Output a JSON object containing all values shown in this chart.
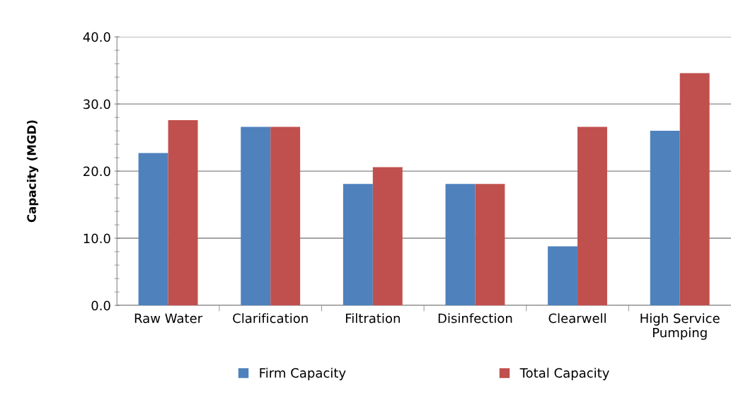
{
  "chart_data": {
    "type": "bar",
    "ylabel": "Capacity (MGD)",
    "categories": [
      "Raw Water",
      "Clarification",
      "Filtration",
      "Disinfection",
      "Clearwell",
      "High Service\nPumping"
    ],
    "series": [
      {
        "name": "Firm Capacity",
        "color": "#4f81bd",
        "values": [
          22.7,
          26.6,
          18.1,
          18.1,
          8.8,
          26.0
        ]
      },
      {
        "name": "Total Capacity",
        "color": "#c0504d",
        "values": [
          27.6,
          26.6,
          20.6,
          18.1,
          26.6,
          34.6
        ]
      }
    ],
    "ylim": [
      0,
      40
    ],
    "yticks": [
      {
        "value": 0,
        "label": "0.0"
      },
      {
        "value": 10,
        "label": "10.0"
      },
      {
        "value": 20,
        "label": "20.0"
      },
      {
        "value": 30,
        "label": "30.0"
      },
      {
        "value": 40,
        "label": "40.0"
      }
    ],
    "grid": "y",
    "legend": "bottom"
  }
}
